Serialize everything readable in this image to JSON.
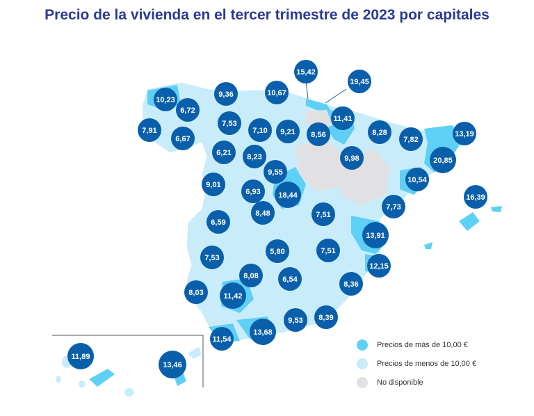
{
  "title": "Precio de la vivienda en el tercer trimestre de 2023 por capitales",
  "colors": {
    "above": "#5fd0f5",
    "below": "#c9ecfb",
    "unavailable": "#e1e1e4",
    "marker": "#0a5fab",
    "marker_text": "#ffffff",
    "title": "#2b3a94"
  },
  "legend": [
    {
      "label": "Precios de más de 10,00 €",
      "color": "#5fd0f5"
    },
    {
      "label": "Precios de menos de 10,00 €",
      "color": "#c9ecfb"
    },
    {
      "label": "No disponible",
      "color": "#e1e1e4"
    }
  ],
  "price_labels": [
    "15,42",
    "19,45",
    "10,23",
    "9,36",
    "10,67",
    "6,72",
    "11,41",
    "7,53",
    "13,19",
    "7,91",
    "7,10",
    "9,21",
    "8,56",
    "8,28",
    "7,82",
    "6,67",
    "6,21",
    "8,23",
    "9,98",
    "20,85",
    "9,55",
    "10,54",
    "9,01",
    "6,93",
    "18,44",
    "16,39",
    "8,48",
    "7,51",
    "7,73",
    "6,59",
    "13,91",
    "5,80",
    "7,51",
    "7,53",
    "12,15",
    "8,08",
    "6,54",
    "8,36",
    "8,03",
    "11,42",
    "9,53",
    "8,39",
    "11,54",
    "13,68",
    "11,89",
    "13,46"
  ]
}
